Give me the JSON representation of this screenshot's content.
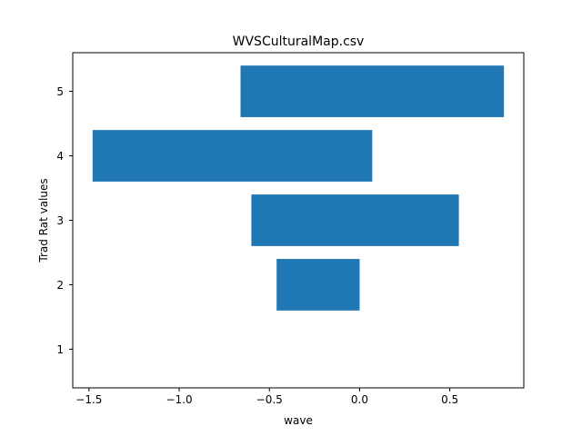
{
  "chart_data": {
    "type": "bar",
    "orientation": "horizontal",
    "title": "WVSCulturalMap.csv",
    "xlabel": "wave",
    "ylabel": "Trad Rat values",
    "bars": [
      {
        "y": 2,
        "left": -0.46,
        "right": 0.0
      },
      {
        "y": 3,
        "left": -0.6,
        "right": 0.55
      },
      {
        "y": 4,
        "left": -1.48,
        "right": 0.07
      },
      {
        "y": 5,
        "left": -0.66,
        "right": 0.8
      }
    ],
    "bar_height": 0.8,
    "xlim": [
      -1.59,
      0.91
    ],
    "ylim": [
      0.4,
      5.6
    ],
    "xticks": [
      -1.5,
      -1.0,
      -0.5,
      0.0,
      0.5
    ],
    "xtick_labels": [
      "−1.5",
      "−1.0",
      "−0.5",
      "0.0",
      "0.5"
    ],
    "yticks": [
      1,
      2,
      3,
      4,
      5
    ],
    "ytick_labels": [
      "1",
      "2",
      "3",
      "4",
      "5"
    ],
    "bar_color": "#1f77b4",
    "grid": false,
    "legend": "none"
  }
}
